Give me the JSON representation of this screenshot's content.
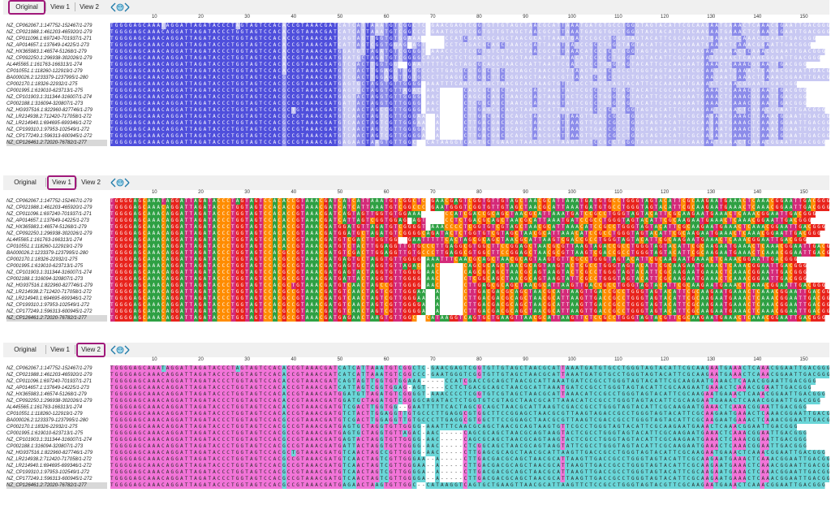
{
  "views": [
    {
      "id": "original",
      "tabs": [
        "Original",
        "View 1",
        "View 2"
      ],
      "active": 0,
      "scheme": "blue"
    },
    {
      "id": "view1",
      "tabs": [
        "Original",
        "View 1",
        "View 2"
      ],
      "active": 1,
      "scheme": "nucleotide"
    },
    {
      "id": "view2",
      "tabs": [
        "Original",
        "View 1",
        "View 2"
      ],
      "active": 2,
      "scheme": "pinkcyan"
    }
  ],
  "ruler_ticks": [
    "10",
    "20",
    "30",
    "40",
    "50",
    "60",
    "70",
    "80",
    "90",
    "100",
    "110",
    "120",
    "130",
    "140",
    "150"
  ],
  "sequence_names": [
    "NZ_CP062067.1:147752-152467/1-279",
    "NZ_CP021988.1:461203-465920/1-279",
    "NZ_CP011096.1:697240-701937/1-271",
    "NZ_AP014657.1:137649-14225/1-273",
    "NZ_HX365983.1:46574-51268/1-279",
    "NZ_CP092250.1:296938-302026/1-279",
    "AL445565.1:161763-166313/1-274",
    "CP010551.1:118260-122919/1-279",
    "BA000026.2:1233379-1237995/1-280",
    "CP002170.1:18326-22932/1-275",
    "CP001995.1:619010-623713/1-275",
    "NZ_CP101903.1:311344-316007/1-274",
    "CP002188.1:316094-320807/1-273",
    "NZ_HG937516.1:822960-827746/1-279",
    "NZ_LR214938.2:712420-717058/1-272",
    "NZ_LR214940.1:694695-699346/1-272",
    "NZ_CP199310.1:97953-102549/1-272",
    "NZ_CP177249.1:596313-600945/1-272",
    "NZ_CP126461.2:72020-76782/1-277"
  ],
  "sequences": [
    "TGGGGAGCAAATAGGATTAGATACCCTAGTAGTCCACACCGTAAACGATCATCATTAAATGTCGGCTC-GAACGAGTCGGTGTTGTAGCTAACGCATTAAATGATGTGCCTGGGTAGTACATTCGCAAGAATGAAACTCAAACGGAATTGACGGG",
    "TGGGGAGCAAACAGGATTAGATACCCTGGTAGTCCACACCGTAAACGATCATCATTAAATGTCGGCCC-GAATGGGTCGGTGTTGTAGCTAACGCATTAAATGATGTGCCTGGGTAGTACATTCGCAAGAATGAAACTCAAACGGAATTGACGGG",
    "TGGGGAGCAAACAGGATTAGATACCCTGGTAGTCCACACCGTAAACGATCAGTAGTTGGTGTGGAAA-----CCATCGACCGCAGCTAACGCATTAAATGATCCGCCTGGGTAGTACATTCGCAAGAATGAAACTCAAACGGAATTGACGGG",
    "TGGGGAGCAAACAGGATTAGATACCCTGGTAGTCCACACCGTAAACGATCATTAGTCGGTGGAG-AGT----CCTCTGACGCAGCTAACGCATTAAATGATCCGCCTGGGTAGTACATTCGCAAGAATGAAACTCAAACGGAATTGACGGG",
    "TGGGGAGCAAACAGGATTAGATACCCTGGTAGTCCACACCGTAAACGATGGATGTTAGATGTCGGGGT-AAACCCCTCGGTGTCGTAGCTAACGCATTAAACATCCGCCTGGGTAGTACATTCGCAAGAATGAAACTCAAACGGAATTGACGGG",
    "TGGGGAGCAAACAGGATTAGATACCCTGGTAGTCCACACCGTAAACGATGGATGCTAGATGTCGGGGCAGATACTCTGGTGTCGTAGCTAACGCATTAAACATCCGCCTGGGTAGTACATTCGCAAGAATGAAACTCAAACGGAATTGACGGG",
    "TGGGGAGCAAACAGGATTAGATACCCTGGTAGTCCACACCGTAAACGATGTCGACTTGGTGG--GAATTTTTCACTAGCGCAGCTAACGCATTAAGTCGACCGCCTGGGTAGTACATTCGCAAGAATGAAACTCAAACGGAATTGACGGG",
    "TGGGGAGCAAACAGGATTAGATACCCTGGTAGTCCACACCGTAAACGATGTCTACTTGGAGGTTGTGCCCTTGAGGCGTGGCTTCCGGAGCTAACGCGTTAAGTAGACCGCCTGGGTAGTACATTCGCAAGAATGAAACTCAAACGGAATTGACGGG",
    "TGGGGAGCAAACAGGATTAGATACCCTGGTAGTCCACGCCGTAAACGATGTCGACTTGGAGGTTGTGCCCTTGAGGCGTGGCTTCCGGAGCTAACGCGTTAAGTCGACCGCCTGGGTAGTACATTCGCAAGAATGAAACTCAAACGGAATTGACGGG",
    "TGGGGAGCAAACAGGATTAGATACCCTGGTAGTCCACGCCGTAAACGATGAGTGCTAGGTGTTGGGG-AAATTTCAACGCAGCTAACGCAGTAAGTGTTCGCCTGGGTAGTACATTCGCAAGAATGAAACTCAAACGGAATTGACGGG",
    "TGGGGAGCAAACAGGATTAGATACCCTGGTAGTCCACGCCGTAAACGATGAGTGCTAGGTGTTAGAC-AAC-----CAGCGCAGCTAACGCAGTAAGTACTCGCCTGGGTAGTACATTCGCAAGAATGAAACTCAAACGGAATTGACGGG",
    "TGGGGAGCAAACAGGATTAGATACCCTGGTAGTCCACGCCGTAAACGATGAGTACTAGGTGTTGGGG-AAC-----CAGCGCAGCTAACGCAGTAAGTACTCGCCTGGGTAGTACATTCGCAAGAATGAAACTCAAACGGAATTGACGGG",
    "TGGGGAGCAAACAGGATTAGATACCCTGGTAGTCCACGCCGTAAACGATGATTACTAGGTGTTGGGG-AAC-----CTCGGCAGCTAACGCAGTAAGTATTCGCCTGGGTAGTACATTCGCAAGAATGAAACTCAAACGGAATTGACGGG",
    "TGGGGAGCAAACAGGATTAGATACCCTGGTAGTCCACGCTGTAAACGATGTCAACTAGCCGTTGGGG-AAC-----CTTGAGCGCAGCTAACGCATTAAGTTGACCGCCTGGGTAGTACATTCGCAAGAATGAAACTCAAACGGAATTGACGGG",
    "TGGGGAGCAAACAGGATTAGATACCCTGGTAGTCCACGCCGTAAACGATGTCAACTAGTCGTTGGGAA--A-----CTTGACGACGCAGCTAACGCATTAAGTTGACCGCCTGGGTAGTACATTCGCAAGAATGAAACTCAAACGGAATTGACGGG",
    "TGGGGAGCAAACAGGATTAGATACCCTGGTAGTCCACGCCGTAAACGATGTCAACTAGTCGTTGGGAA--A-----CTTGACGACGCAGCTAACGCATTAAGTTGACCGCCTGGGTAGTACATTCGCAAGAATGAAACTCAAACGGAATTGACGGG",
    "TGGGGAGCAAACAGGATTAGATACCCTGGTAGTCCACGCCGTAAACGATGTCAACTAGTCGTTGGGGA--A-----CTTGACGACGCAGCTAACGCATTAAGTTGACCGCCTGGGTAGTACATTCGCAAGAATGAAACTCAAACGGAATTGACGGG",
    "TGGGGAGCAAACAGGATTAGATACCCTGGTAGTCCACGCCGTAAACGATGTCAACTAGTCGTTGGGGA--A-----CTTGACGACGCAGCTAACGCATTAAGTTGACCGCCTGGGTAGTACATTCGCAAGAATGAAACTCAAACGGAATTGACGGG",
    "TGGGGAGCAAACAGGATTAGATACCCTGGTAGTCCACGCCGTAAACGATGAGAACTAAGTGTTGGC--CATAAGGTCAGTGCTGAAGTTAACGCATTAAGTTCTCCGCCTGGGTAGTACGTTCGCAAGAATGAAACTCAAACGGAATTGACGGG"
  ],
  "colors": {
    "blue_dark": "#4f4fdc",
    "blue_mid": "#8c8cea",
    "blue_light": "#c8c8f2",
    "A": "#2ea043",
    "C": "#ff8c00",
    "G": "#e8231c",
    "T": "#d42a7a",
    "pink": "#f274d8",
    "cyan": "#6ad6d8",
    "gap": "#ffffff"
  },
  "highlighted_row": 18
}
